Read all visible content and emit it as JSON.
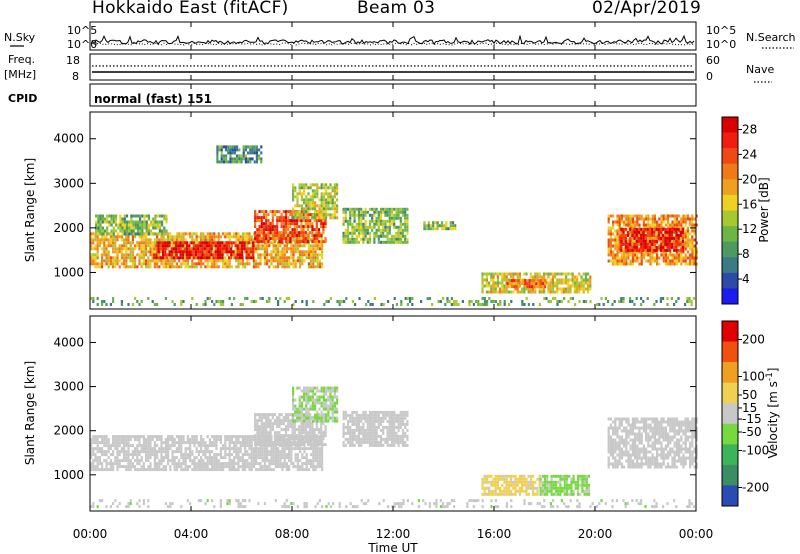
{
  "header": {
    "title": "Hokkaido East (fitACF)",
    "beam": "Beam 03",
    "date": "02/Apr/2019"
  },
  "noise_panel": {
    "left_label": "N.Sky",
    "right_label": "N.Search",
    "ticks": [
      "10^5",
      "10^0"
    ]
  },
  "freq_panel": {
    "label_top": "Freq.",
    "label_unit": "[MHz]",
    "left_ticks": [
      "18",
      "8"
    ],
    "right_ticks": [
      "60",
      "0"
    ],
    "right_label": "Nave"
  },
  "cpid_panel": {
    "label": "CPID",
    "mode": "normal (fast) 151"
  },
  "colors": {
    "power_scale": [
      "#1c1cf0",
      "#2c4aa8",
      "#3c7a84",
      "#4c9a62",
      "#6cb646",
      "#a8c832",
      "#f0d020",
      "#f0a020",
      "#f07a18",
      "#f04a14",
      "#f01e10",
      "#d80000"
    ],
    "velocity_scale": [
      "#e00000",
      "#f05010",
      "#f0a020",
      "#f0d050",
      "#c8c8c8",
      "#78d840",
      "#3cb45a",
      "#3c8c64",
      "#284cb4"
    ]
  },
  "chart_data": [
    {
      "type": "heatmap",
      "name_key": "power",
      "x": {
        "label": "Time UT",
        "ticks": [
          "00:00",
          "04:00",
          "08:00",
          "12:00",
          "16:00",
          "20:00",
          "00:00"
        ],
        "range_hours": [
          0,
          24
        ]
      },
      "y": {
        "label": "Slant Range [km]",
        "ticks": [
          1000,
          2000,
          3000,
          4000
        ],
        "range": [
          180,
          4600
        ]
      },
      "colorbar": {
        "label": "Power [dB]",
        "ticks": [
          4,
          8,
          12,
          16,
          20,
          24,
          28
        ],
        "range": [
          0,
          30
        ]
      },
      "regions": [
        {
          "t": [
            0.0,
            9.2
          ],
          "r": [
            1150,
            1900
          ],
          "v": 18
        },
        {
          "t": [
            2.5,
            6.5
          ],
          "r": [
            1350,
            1700
          ],
          "v": 27
        },
        {
          "t": [
            6.5,
            9.3
          ],
          "r": [
            1700,
            2400
          ],
          "v": 24
        },
        {
          "t": [
            8.0,
            9.8
          ],
          "r": [
            2200,
            3000
          ],
          "v": 14
        },
        {
          "t": [
            0.2,
            3.0
          ],
          "r": [
            1850,
            2300
          ],
          "v": 12
        },
        {
          "t": [
            10.0,
            12.6
          ],
          "r": [
            1700,
            2450
          ],
          "v": 12
        },
        {
          "t": [
            13.2,
            14.5
          ],
          "r": [
            1950,
            2150
          ],
          "v": 12
        },
        {
          "t": [
            15.5,
            19.8
          ],
          "r": [
            550,
            1000
          ],
          "v": 16
        },
        {
          "t": [
            16.5,
            18.0
          ],
          "r": [
            650,
            850
          ],
          "v": 22
        },
        {
          "t": [
            20.5,
            24.0
          ],
          "r": [
            1200,
            2300
          ],
          "v": 20
        },
        {
          "t": [
            21.0,
            23.5
          ],
          "r": [
            1500,
            2000
          ],
          "v": 27
        },
        {
          "t": [
            0.0,
            24.0
          ],
          "r": [
            250,
            450
          ],
          "v": 10
        },
        {
          "t": [
            5.0,
            6.8
          ],
          "r": [
            3500,
            3850
          ],
          "v": 8
        }
      ]
    },
    {
      "type": "heatmap",
      "name_key": "velocity",
      "x": {
        "label": "Time UT",
        "ticks": [
          "00:00",
          "04:00",
          "08:00",
          "12:00",
          "16:00",
          "20:00",
          "00:00"
        ],
        "range_hours": [
          0,
          24
        ]
      },
      "y": {
        "label": "Slant Range [km]",
        "ticks": [
          1000,
          2000,
          3000,
          4000
        ],
        "range": [
          180,
          4600
        ]
      },
      "colorbar": {
        "label": "Velocity [m s^-1]",
        "ticks": [
          200,
          100,
          50,
          15,
          -15,
          -50,
          -100,
          -200
        ],
        "range": [
          -250,
          250
        ]
      },
      "regions": [
        {
          "t": [
            0.0,
            9.2
          ],
          "r": [
            1150,
            1900
          ],
          "v": 0
        },
        {
          "t": [
            6.5,
            9.3
          ],
          "r": [
            1700,
            2400
          ],
          "v": 0
        },
        {
          "t": [
            8.0,
            9.8
          ],
          "r": [
            2200,
            3000
          ],
          "v": -30
        },
        {
          "t": [
            10.0,
            12.6
          ],
          "r": [
            1700,
            2450
          ],
          "v": 0
        },
        {
          "t": [
            15.5,
            17.8
          ],
          "r": [
            550,
            1000
          ],
          "v": 40
        },
        {
          "t": [
            17.8,
            19.8
          ],
          "r": [
            550,
            1000
          ],
          "v": -40
        },
        {
          "t": [
            20.5,
            24.0
          ],
          "r": [
            1200,
            2300
          ],
          "v": 0
        },
        {
          "t": [
            0.0,
            24.0
          ],
          "r": [
            250,
            450
          ],
          "v": -10
        }
      ]
    }
  ]
}
